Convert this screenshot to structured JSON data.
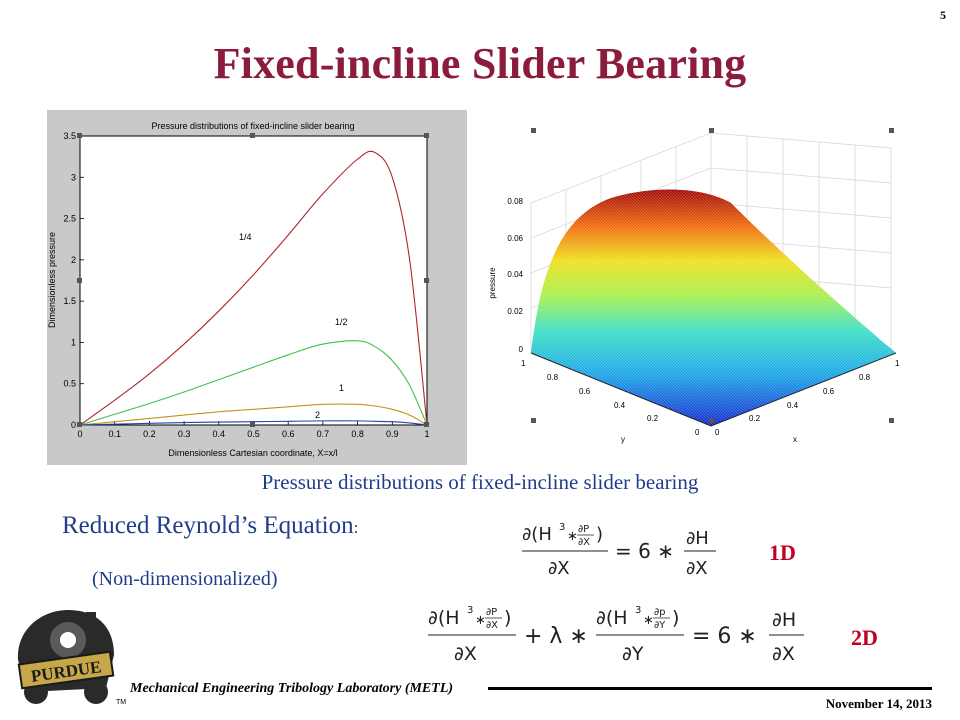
{
  "page_number": "5",
  "slide_title": "Fixed-incline Slider Bearing",
  "colors": {
    "title": "#8b1c3b",
    "caption": "#1f3d8a",
    "labels": "#c0001f"
  },
  "plot_2d": {
    "title": "Pressure distributions of fixed-incline slider bearing",
    "xlabel": "Dimensionless Cartesian coordinate, X=x/l",
    "ylabel": "Dimensionless pressure",
    "x_ticks": [
      "0",
      "0.1",
      "0.2",
      "0.3",
      "0.4",
      "0.5",
      "0.6",
      "0.7",
      "0.8",
      "0.9",
      "1"
    ],
    "y_ticks": [
      "0",
      "0.5",
      "1",
      "1.5",
      "2",
      "2.5",
      "3",
      "3.5"
    ],
    "curve_labels": [
      "1/4",
      "1/2",
      "1",
      "2"
    ]
  },
  "chart_data": {
    "type": "line",
    "title": "Pressure distributions of fixed-incline slider bearing",
    "xlabel": "Dimensionless Cartesian coordinate, X=x/l",
    "ylabel": "Dimensionless pressure",
    "xlim": [
      0,
      1
    ],
    "ylim": [
      0,
      3.5
    ],
    "x": [
      0,
      0.1,
      0.2,
      0.3,
      0.4,
      0.5,
      0.6,
      0.7,
      0.8,
      0.85,
      0.9,
      0.95,
      1.0
    ],
    "series": [
      {
        "name": "1/4",
        "color": "#b4232a",
        "values": [
          0,
          0.3,
          0.62,
          0.98,
          1.38,
          1.82,
          2.3,
          2.8,
          3.22,
          3.3,
          3.0,
          2.0,
          0
        ]
      },
      {
        "name": "1/2",
        "color": "#45c04a",
        "values": [
          0,
          0.13,
          0.26,
          0.4,
          0.55,
          0.7,
          0.85,
          0.98,
          1.02,
          0.95,
          0.78,
          0.48,
          0
        ]
      },
      {
        "name": "1",
        "color": "#c89020",
        "values": [
          0,
          0.04,
          0.08,
          0.12,
          0.16,
          0.19,
          0.22,
          0.25,
          0.25,
          0.23,
          0.19,
          0.12,
          0
        ]
      },
      {
        "name": "2",
        "color": "#2244aa",
        "values": [
          0,
          0.01,
          0.02,
          0.03,
          0.035,
          0.04,
          0.045,
          0.05,
          0.05,
          0.045,
          0.04,
          0.025,
          0
        ]
      }
    ],
    "grid": false
  },
  "plot_3d": {
    "zlabel": "pressure",
    "xlabel": "x",
    "ylabel": "y",
    "z_ticks": [
      "0",
      "0.02",
      "0.04",
      "0.06",
      "0.08"
    ],
    "y_ticks": [
      "1",
      "0.8",
      "0.6",
      "0.4",
      "0.2",
      "0"
    ],
    "x_ticks": [
      "0",
      "0.2",
      "0.4",
      "0.6",
      "0.8",
      "1"
    ]
  },
  "caption": "Pressure distributions of fixed-incline slider bearing",
  "equation_heading": "Reduced Reynold’s Equation",
  "equation_heading_colon": ":",
  "non_dimensionalized": "(Non-dimensionalized)",
  "equation_1d": {
    "lhs_num_1": "∂(H",
    "lhs_num_2": "3",
    "lhs_num_3": "∗",
    "lhs_num_4": "∂P",
    "lhs_num_5": "∂X",
    "lhs_num_6": ")",
    "lhs_den": "∂X",
    "equals": "= 6 ∗",
    "rhs_num": "∂H",
    "rhs_den": "∂X"
  },
  "equation_2d": {
    "t1_num_1": "∂(H",
    "t1_sup": "3",
    "t1_star": "∗",
    "t1_frac_num": "∂P",
    "t1_frac_den": "∂X",
    "t1_close": ")",
    "t1_den": "∂X",
    "plus": "+ λ ∗",
    "t2_num_1": "∂(H",
    "t2_sup": "3",
    "t2_star": "∗",
    "t2_frac_num": "∂p",
    "t2_frac_den": "∂Y",
    "t2_close": ")",
    "t2_den": "∂Y",
    "equals": "= 6 ∗",
    "rhs_num": "∂H",
    "rhs_den": "∂X"
  },
  "label_1d": "1D",
  "label_2d": "2D",
  "logo": {
    "text": "PURDUE",
    "tm": "TM"
  },
  "footer_lab": "Mechanical Engineering Tribology Laboratory (METL)",
  "footer_date": "November 14, 2013"
}
